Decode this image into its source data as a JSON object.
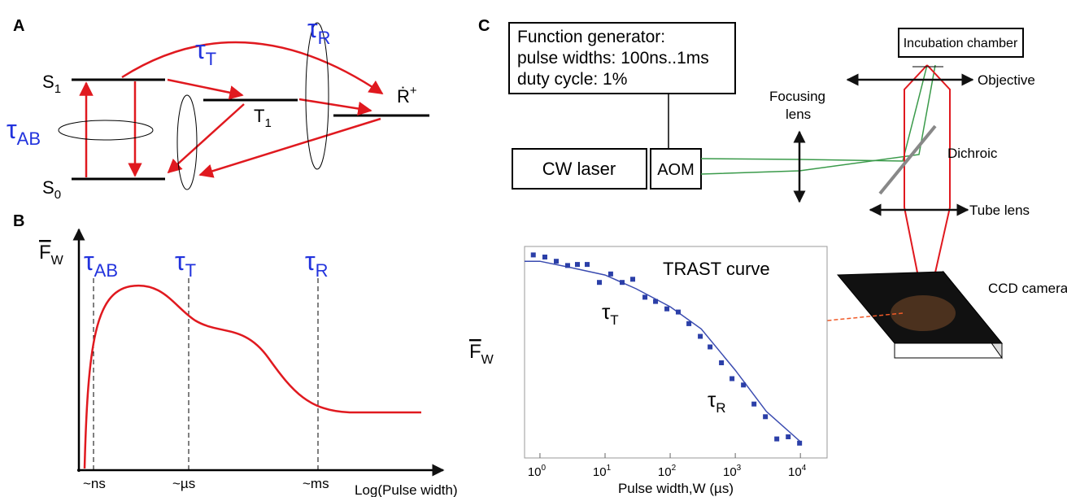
{
  "panel_a": {
    "label": "A",
    "states": {
      "s1": {
        "main": "S",
        "sub": "1"
      },
      "s0": {
        "main": "S",
        "sub": "0"
      },
      "t1": {
        "main": "T",
        "sub": "1"
      },
      "r": {
        "main": "Ṙ",
        "sup": "+"
      }
    },
    "taus": {
      "ab": {
        "main": "τ",
        "sub": "AB"
      },
      "t": {
        "main": "τ",
        "sub": "T"
      },
      "r": {
        "main": "τ",
        "sub": "R"
      }
    }
  },
  "panel_b": {
    "label": "B",
    "y_label": {
      "main": "F",
      "sub": "W"
    },
    "taus": {
      "ab": {
        "main": "τ",
        "sub": "AB"
      },
      "t": {
        "main": "τ",
        "sub": "T"
      },
      "r": {
        "main": "τ",
        "sub": "R"
      }
    },
    "x_ticks": [
      "~ns",
      "~µs",
      "~ms"
    ],
    "x_label": "Log(Pulse width)"
  },
  "panel_c": {
    "label": "C",
    "function_generator": [
      "Function generator:",
      "pulse widths: 100ns..1ms",
      "duty cycle: 1%"
    ],
    "cw_laser": "CW laser",
    "aom": "AOM",
    "focusing_lens": [
      "Focusing",
      "lens"
    ],
    "dichroic": "Dichroic",
    "incubation_chamber": "Incubation chamber",
    "objective": "Objective",
    "tube_lens": "Tube lens",
    "ccd_camera": "CCD camera"
  },
  "chart_data": {
    "type": "scatter",
    "title": "TRAST curve",
    "x_label": "Pulse width,W (µs)",
    "y_label": {
      "main": "F",
      "sub": "W"
    },
    "annotations": [
      {
        "main": "τ",
        "sub": "T"
      },
      {
        "main": "τ",
        "sub": "R"
      }
    ],
    "log_x": true,
    "xlim": [
      0.58,
      25700
    ],
    "ylim": [
      0,
      1
    ],
    "xticks": [
      {
        "value": 1,
        "label": "10",
        "exp": "0"
      },
      {
        "value": 10,
        "label": "10",
        "exp": "1"
      },
      {
        "value": 100,
        "label": "10",
        "exp": "2"
      },
      {
        "value": 1000,
        "label": "10",
        "exp": "3"
      },
      {
        "value": 10000,
        "label": "10",
        "exp": "4"
      }
    ],
    "points": {
      "color": "#2b3fa8",
      "x": [
        0.79,
        1.19,
        1.78,
        2.66,
        3.76,
        5.31,
        8.18,
        12.2,
        18.3,
        26.6,
        41,
        59.6,
        89.1,
        133,
        194,
        290,
        410,
        613,
        891,
        1334,
        1940,
        2900,
        4340,
        6500,
        9710
      ],
      "y": [
        0.96,
        0.95,
        0.93,
        0.91,
        0.915,
        0.915,
        0.83,
        0.87,
        0.83,
        0.845,
        0.76,
        0.74,
        0.705,
        0.69,
        0.635,
        0.575,
        0.525,
        0.45,
        0.375,
        0.345,
        0.255,
        0.195,
        0.09,
        0.1,
        0.07
      ]
    },
    "fit": {
      "color": "#3a4bb0",
      "x": [
        0.58,
        1,
        3,
        10,
        30,
        100,
        300,
        1000,
        3000,
        10000
      ],
      "y": [
        0.93,
        0.93,
        0.9,
        0.865,
        0.8,
        0.715,
        0.61,
        0.415,
        0.22,
        0.077
      ]
    }
  }
}
